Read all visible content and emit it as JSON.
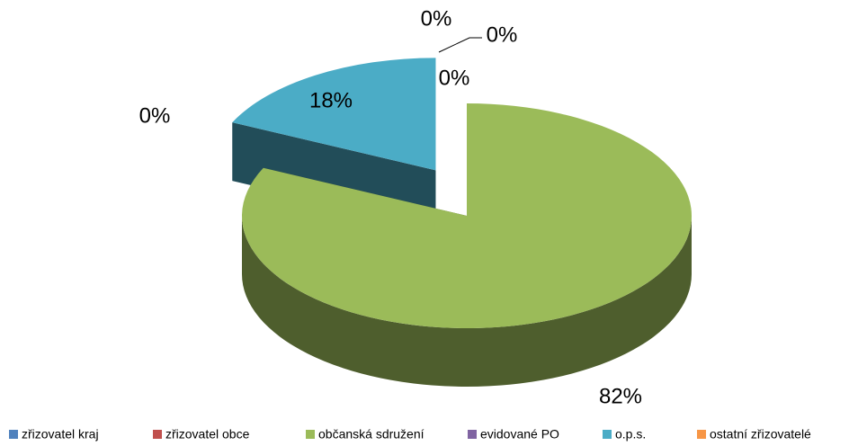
{
  "chart_data": {
    "type": "pie",
    "categories": [
      "zřizovatel kraj",
      "zřizovatel obce",
      "občanská sdružení",
      "evidované PO",
      "o.p.s.",
      "ostatní zřizovatelé"
    ],
    "values": [
      0,
      0,
      82,
      0,
      18,
      0
    ],
    "value_labels": [
      "0%",
      "0%",
      "82%",
      "0%",
      "18%",
      "0%"
    ],
    "colors": [
      "#4f81bd",
      "#c0504d",
      "#9bbb59",
      "#8064a2",
      "#4bacc6",
      "#f79646"
    ],
    "legend": "bottom"
  }
}
